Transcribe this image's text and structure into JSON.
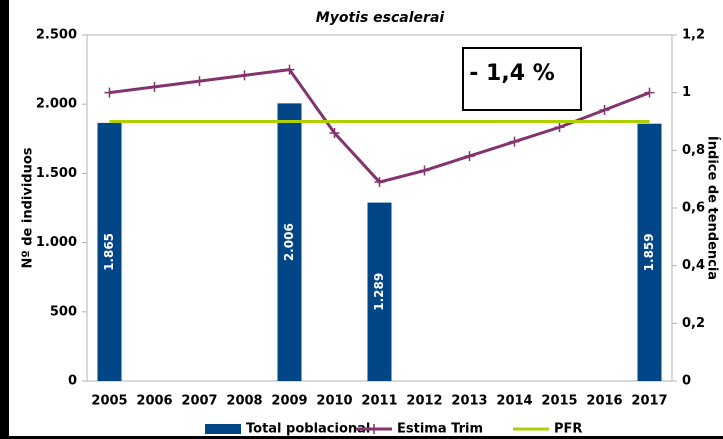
{
  "chart_data": {
    "type": "bar",
    "title": "Myotis escalerai",
    "categories": [
      "2005",
      "2006",
      "2007",
      "2008",
      "2009",
      "2010",
      "2011",
      "2012",
      "2013",
      "2014",
      "2015",
      "2016",
      "2017"
    ],
    "ylabel": "Nº de individuos",
    "y2label": "Índice de tendencia",
    "ylim": [
      0,
      2500
    ],
    "yticks": [
      0,
      {
        "value": 500,
        "label": "500"
      },
      {
        "value": 1000,
        "label": "1.000"
      },
      {
        "value": 1500,
        "label": "1.500"
      },
      {
        "value": 2000,
        "label": "2.000"
      },
      {
        "value": 2500,
        "label": "2.500"
      }
    ],
    "y2lim": [
      0,
      1.2
    ],
    "y2ticks": [
      0,
      {
        "value": 0.2,
        "label": "0,2"
      },
      {
        "value": 0.4,
        "label": "0,4"
      },
      {
        "value": 0.6,
        "label": "0,6"
      },
      {
        "value": 0.8,
        "label": "0,8"
      },
      1,
      {
        "value": 1.2,
        "label": "1,2"
      }
    ],
    "annotation": "- 1,4 %",
    "series": [
      {
        "name": "Total poblacional",
        "type": "bar",
        "color": "#004586",
        "values": [
          1865,
          null,
          null,
          null,
          2006,
          null,
          1289,
          null,
          null,
          null,
          null,
          null,
          1859
        ],
        "value_labels": [
          "1.865",
          null,
          null,
          null,
          "2.006",
          null,
          "1.289",
          null,
          null,
          null,
          null,
          null,
          "1.859"
        ]
      },
      {
        "name": "Estima Trim",
        "type": "line",
        "axis": "y2",
        "color": "#83336e",
        "values": [
          1.0,
          1.02,
          1.04,
          1.06,
          1.08,
          0.86,
          0.69,
          0.73,
          0.78,
          0.83,
          0.88,
          0.94,
          1.0
        ]
      },
      {
        "name": "PFR",
        "type": "line",
        "axis": "y2",
        "color": "#aecf00",
        "values": [
          0.9,
          0.9,
          0.9,
          0.9,
          0.9,
          0.9,
          0.9,
          0.9,
          0.9,
          0.9,
          0.9,
          0.9,
          0.9
        ]
      }
    ]
  }
}
